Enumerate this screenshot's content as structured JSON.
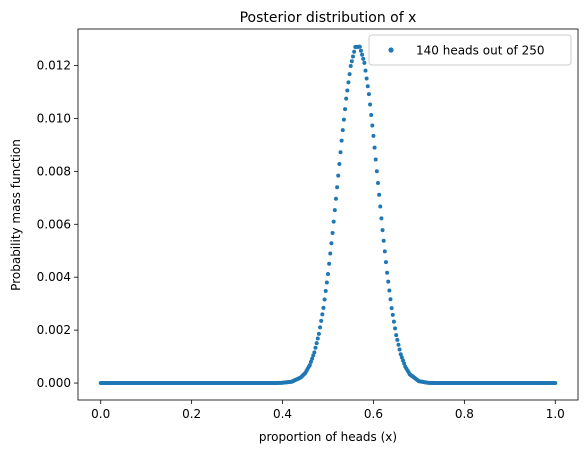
{
  "chart_data": {
    "type": "scatter",
    "title": "Posterior distribution of x",
    "xlabel": "proportion of heads (x)",
    "ylabel": "Probability mass function",
    "xlim": [
      -0.05,
      1.05
    ],
    "ylim": [
      -0.00064,
      0.01338
    ],
    "xticks": [
      {
        "value": 0.0,
        "label": "0.0"
      },
      {
        "value": 0.2,
        "label": "0.2"
      },
      {
        "value": 0.4,
        "label": "0.4"
      },
      {
        "value": 0.6,
        "label": "0.6"
      },
      {
        "value": 0.8,
        "label": "0.8"
      },
      {
        "value": 1.0,
        "label": "1.0"
      }
    ],
    "yticks": [
      {
        "value": 0.0,
        "label": "0.000"
      },
      {
        "value": 0.002,
        "label": "0.002"
      },
      {
        "value": 0.004,
        "label": "0.004"
      },
      {
        "value": 0.006,
        "label": "0.006"
      },
      {
        "value": 0.008,
        "label": "0.008"
      },
      {
        "value": 0.01,
        "label": "0.010"
      },
      {
        "value": 0.012,
        "label": "0.012"
      }
    ],
    "grid": false,
    "legend_position": "top-right",
    "series": [
      {
        "name": "140 heads out of 250",
        "color": "#1f77b4",
        "x": [
          0.0,
          0.02,
          0.04,
          0.06,
          0.08,
          0.1,
          0.12,
          0.14,
          0.16,
          0.18,
          0.2,
          0.22,
          0.24,
          0.26,
          0.28,
          0.3,
          0.32,
          0.34,
          0.36,
          0.38,
          0.4,
          0.42,
          0.44,
          0.45,
          0.46,
          0.47,
          0.48,
          0.49,
          0.5,
          0.51,
          0.52,
          0.53,
          0.54,
          0.55,
          0.56,
          0.57,
          0.58,
          0.59,
          0.6,
          0.61,
          0.62,
          0.63,
          0.64,
          0.65,
          0.66,
          0.67,
          0.68,
          0.7,
          0.72,
          0.74,
          0.76,
          0.78,
          0.8,
          0.82,
          0.84,
          0.86,
          0.88,
          0.9,
          0.92,
          0.94,
          0.96,
          0.98,
          1.0
        ],
        "y": [
          0.0,
          0.0,
          0.0,
          0.0,
          0.0,
          0.0,
          0.0,
          0.0,
          0.0,
          0.0,
          0.0,
          0.0,
          0.0,
          0.0,
          0.0,
          0.0,
          0.0,
          0.0,
          0.0,
          0.0,
          1e-05,
          5e-05,
          0.00021,
          0.00038,
          0.00068,
          0.00116,
          0.00186,
          0.00284,
          0.00412,
          0.00567,
          0.0074,
          0.00916,
          0.01075,
          0.01198,
          0.0127,
          0.01271,
          0.0121,
          0.01092,
          0.00934,
          0.00756,
          0.00578,
          0.00417,
          0.00283,
          0.00181,
          0.00109,
          0.00062,
          0.00033,
          7e-05,
          1e-05,
          0.0,
          0.0,
          0.0,
          0.0,
          0.0,
          0.0,
          0.0,
          0.0,
          0.0,
          0.0,
          0.0,
          0.0,
          0.0,
          0.0
        ]
      }
    ]
  }
}
